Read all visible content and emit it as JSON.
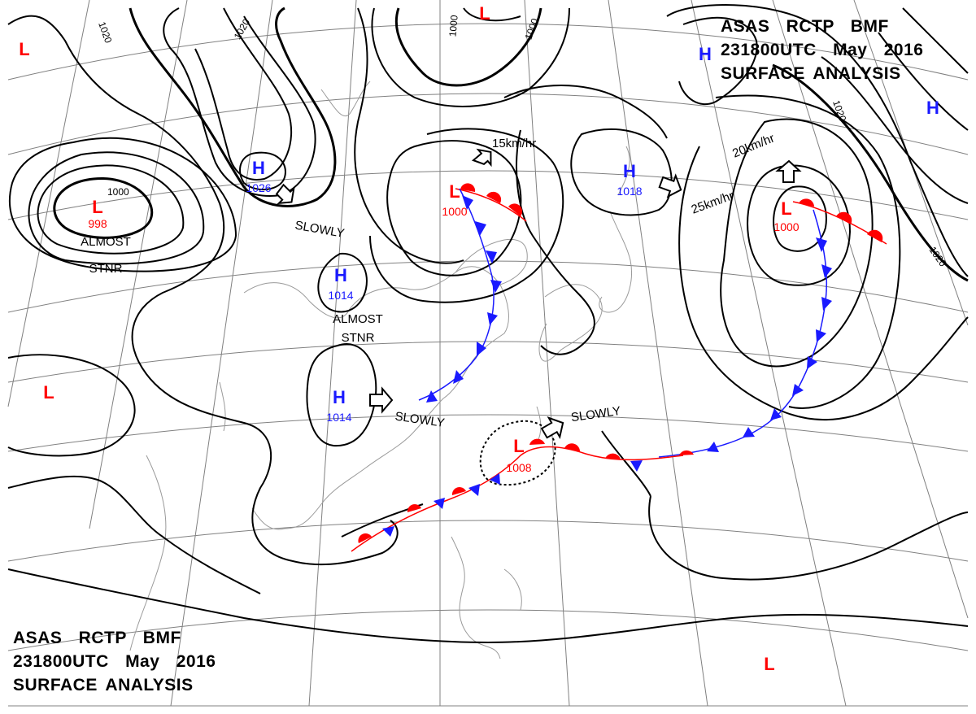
{
  "header": {
    "line1": "ASAS   RCTP   BMF",
    "line2": "231800UTC   May   2016",
    "line3": "SURFACE ANALYSIS"
  },
  "colors": {
    "high": "#1a1aff",
    "low": "#ff0000",
    "isobar": "#000000",
    "coast": "#9a9a9a",
    "grid": "#808080"
  },
  "pressure_systems": [
    {
      "type": "L",
      "value": ""
    },
    {
      "type": "L",
      "value": "998"
    },
    {
      "type": "H",
      "value": "1026"
    },
    {
      "type": "L",
      "value": ""
    },
    {
      "type": "H",
      "value": "1014"
    },
    {
      "type": "H",
      "value": "1014"
    },
    {
      "type": "L",
      "value": "1000"
    },
    {
      "type": "H",
      "value": "1018"
    },
    {
      "type": "H",
      "value": ""
    },
    {
      "type": "L",
      "value": "1000"
    },
    {
      "type": "L",
      "value": ""
    },
    {
      "type": "H",
      "value": ""
    },
    {
      "type": "L",
      "value": "1008"
    },
    {
      "type": "L",
      "value": ""
    }
  ],
  "isobar_labels": [
    "1020",
    "1020",
    "1000",
    "1000",
    "1000",
    "1020",
    "1020"
  ],
  "annotations": {
    "almost_stnr_1": [
      "ALMOST",
      "STNR"
    ],
    "almost_stnr_2": [
      "ALMOST",
      "STNR"
    ],
    "slowly_1": "SLOWLY",
    "slowly_2": "SLOWLY",
    "slowly_3": "SLOWLY",
    "speed_15": "15km/hr",
    "speed_20": "20km/hr",
    "speed_25": "25km/hr"
  },
  "fronts": [
    {
      "type": "warm",
      "name": "warm front east of 1000 low (north)"
    },
    {
      "type": "cold",
      "name": "cold front south of 1000 low (north)"
    },
    {
      "type": "warm",
      "name": "warm front east of 1000 low (northeast)"
    },
    {
      "type": "cold",
      "name": "cold front south of 1000 low (northeast)"
    },
    {
      "type": "stationary",
      "name": "stationary front through 1008 low"
    }
  ]
}
